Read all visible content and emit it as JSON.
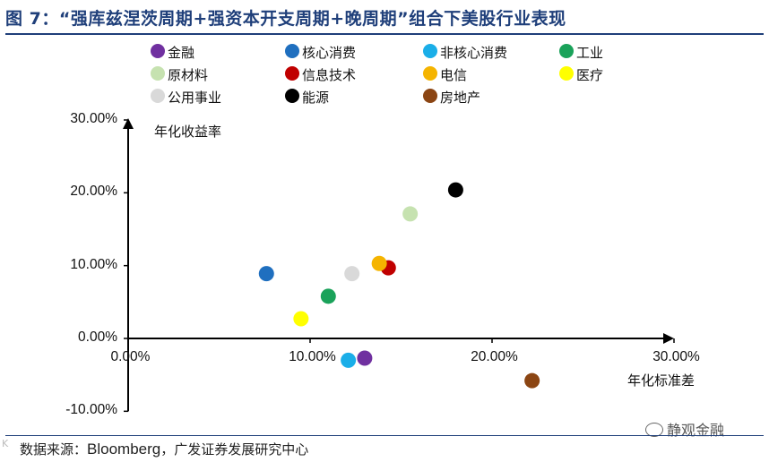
{
  "title": "图 7：“强库兹涅茨周期+强资本开支周期+晚周期”组合下美股行业表现",
  "source": {
    "prefix": "数据来源：",
    "latin": "Bloomberg",
    "suffix": "，广发证券发展研究中心"
  },
  "watermark": "静观金融",
  "corner_mark": "K",
  "colors": {
    "title": "#1f3f7a",
    "axis": "#000000"
  },
  "chart_data": {
    "type": "scatter",
    "title": "",
    "xlabel": "年化标准差",
    "ylabel": "年化收益率",
    "xlim": [
      0,
      0.3
    ],
    "ylim": [
      -0.1,
      0.3
    ],
    "x_ticks": [
      {
        "v": 0.0,
        "label": "0.00%"
      },
      {
        "v": 0.1,
        "label": "10.00%"
      },
      {
        "v": 0.2,
        "label": "20.00%"
      },
      {
        "v": 0.3,
        "label": "30.00%"
      }
    ],
    "y_ticks": [
      {
        "v": 0.3,
        "label": "30.00%"
      },
      {
        "v": 0.2,
        "label": "20.00%"
      },
      {
        "v": 0.1,
        "label": "10.00%"
      },
      {
        "v": 0.0,
        "label": "0.00%"
      },
      {
        "v": -0.1,
        "label": "-10.00%"
      }
    ],
    "legend_position": "top",
    "series": [
      {
        "name": "金融",
        "color": "#7030a0",
        "x": 0.13,
        "y": -0.027
      },
      {
        "name": "核心消费",
        "color": "#1f6fbf",
        "x": 0.076,
        "y": 0.089
      },
      {
        "name": "非核心消费",
        "color": "#1aaee8",
        "x": 0.121,
        "y": -0.03
      },
      {
        "name": "工业",
        "color": "#1aa25a",
        "x": 0.11,
        "y": 0.058
      },
      {
        "name": "原材料",
        "color": "#c6e2b0",
        "x": 0.155,
        "y": 0.171
      },
      {
        "name": "信息技术",
        "color": "#c00000",
        "x": 0.143,
        "y": 0.097
      },
      {
        "name": "电信",
        "color": "#f5b400",
        "x": 0.138,
        "y": 0.103
      },
      {
        "name": "医疗",
        "color": "#ffff00",
        "x": 0.095,
        "y": 0.027
      },
      {
        "name": "公用事业",
        "color": "#d9d9d9",
        "x": 0.123,
        "y": 0.089
      },
      {
        "name": "能源",
        "color": "#000000",
        "x": 0.18,
        "y": 0.204
      },
      {
        "name": "房地产",
        "color": "#8b4513",
        "x": 0.222,
        "y": -0.058
      }
    ]
  }
}
